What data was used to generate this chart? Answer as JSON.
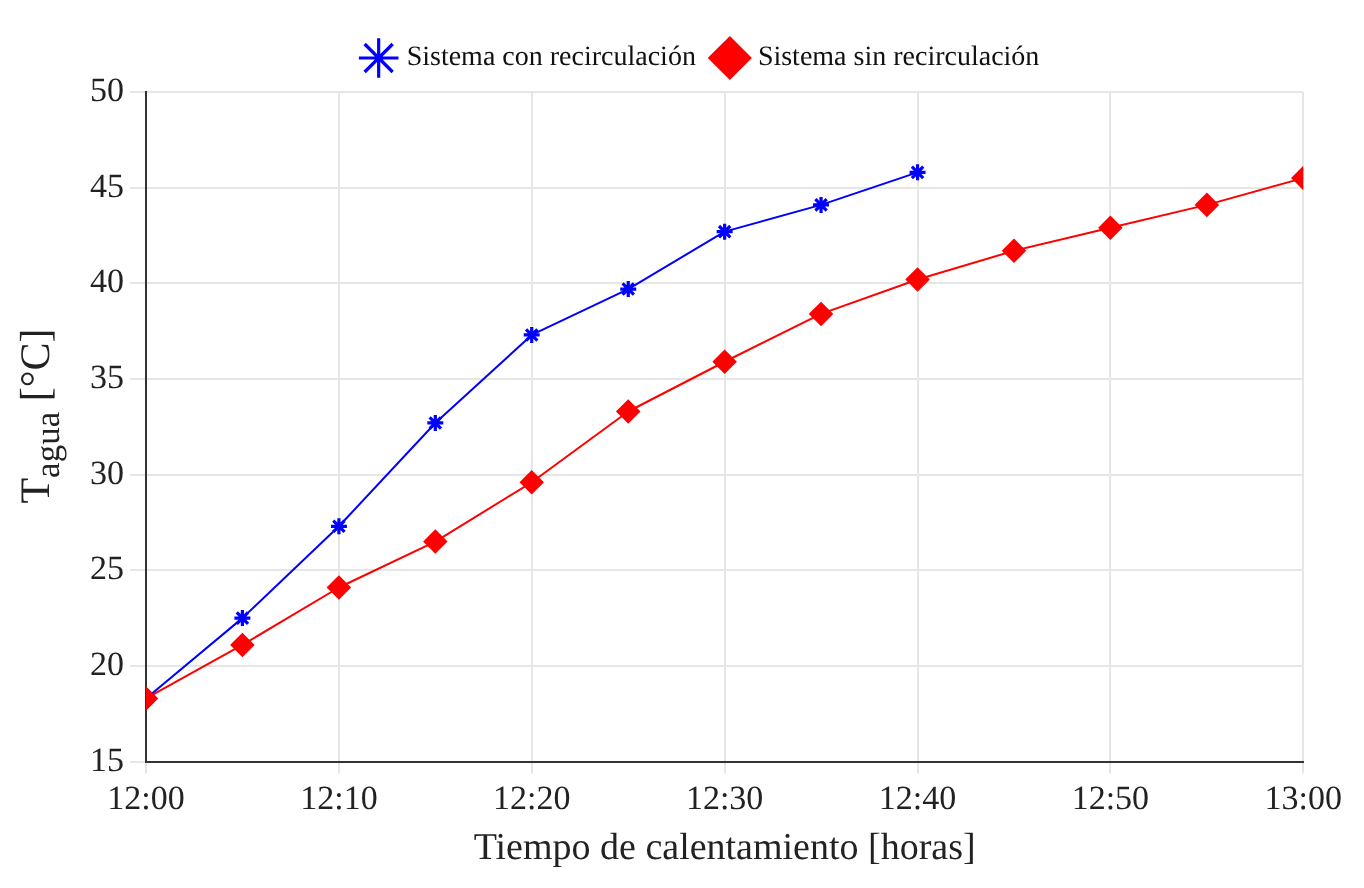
{
  "chart_data": {
    "type": "line",
    "xlabel": "Tiempo de calentamiento [horas]",
    "ylabel": "T$_{agua}$  [°C]",
    "series": [
      {
        "name": "Sistema con recirculación",
        "color": "#0000ff",
        "marker": "cross",
        "x": [
          12,
          12.0833,
          12.1667,
          12.25,
          12.3333,
          12.4167,
          12.5,
          12.5833,
          12.6667
        ],
        "values": [
          18.3,
          22.5,
          27.3,
          32.7,
          37.3,
          39.7,
          42.7,
          44.1,
          45.8
        ]
      },
      {
        "name": "Sistema sin recirculación",
        "color": "#ff0000",
        "marker": "diamond",
        "x": [
          12,
          12.0833,
          12.1667,
          12.25,
          12.3333,
          12.4167,
          12.5,
          12.5833,
          12.6667,
          12.75,
          12.8333,
          12.9167,
          13
        ],
        "values": [
          18.3,
          21.1,
          24.1,
          26.5,
          29.6,
          33.3,
          35.9,
          38.4,
          40.2,
          41.7,
          42.9,
          44.1,
          45.5
        ]
      }
    ],
    "xlim": [
      12,
      13
    ],
    "xticks": [
      {
        "value": 12,
        "label": "12:00"
      },
      {
        "value": 12.1667,
        "label": "12:10"
      },
      {
        "value": 12.3333,
        "label": "12:20"
      },
      {
        "value": 12.5,
        "label": "12:30"
      },
      {
        "value": 12.6667,
        "label": "12:40"
      },
      {
        "value": 12.8333,
        "label": "12:50"
      },
      {
        "value": 13,
        "label": "13:00"
      }
    ],
    "ylim": [
      15,
      50
    ],
    "yticks": [
      15,
      20,
      25,
      30,
      35,
      40,
      45,
      50
    ],
    "grid": true,
    "legend": "top",
    "line_style": "solid"
  }
}
